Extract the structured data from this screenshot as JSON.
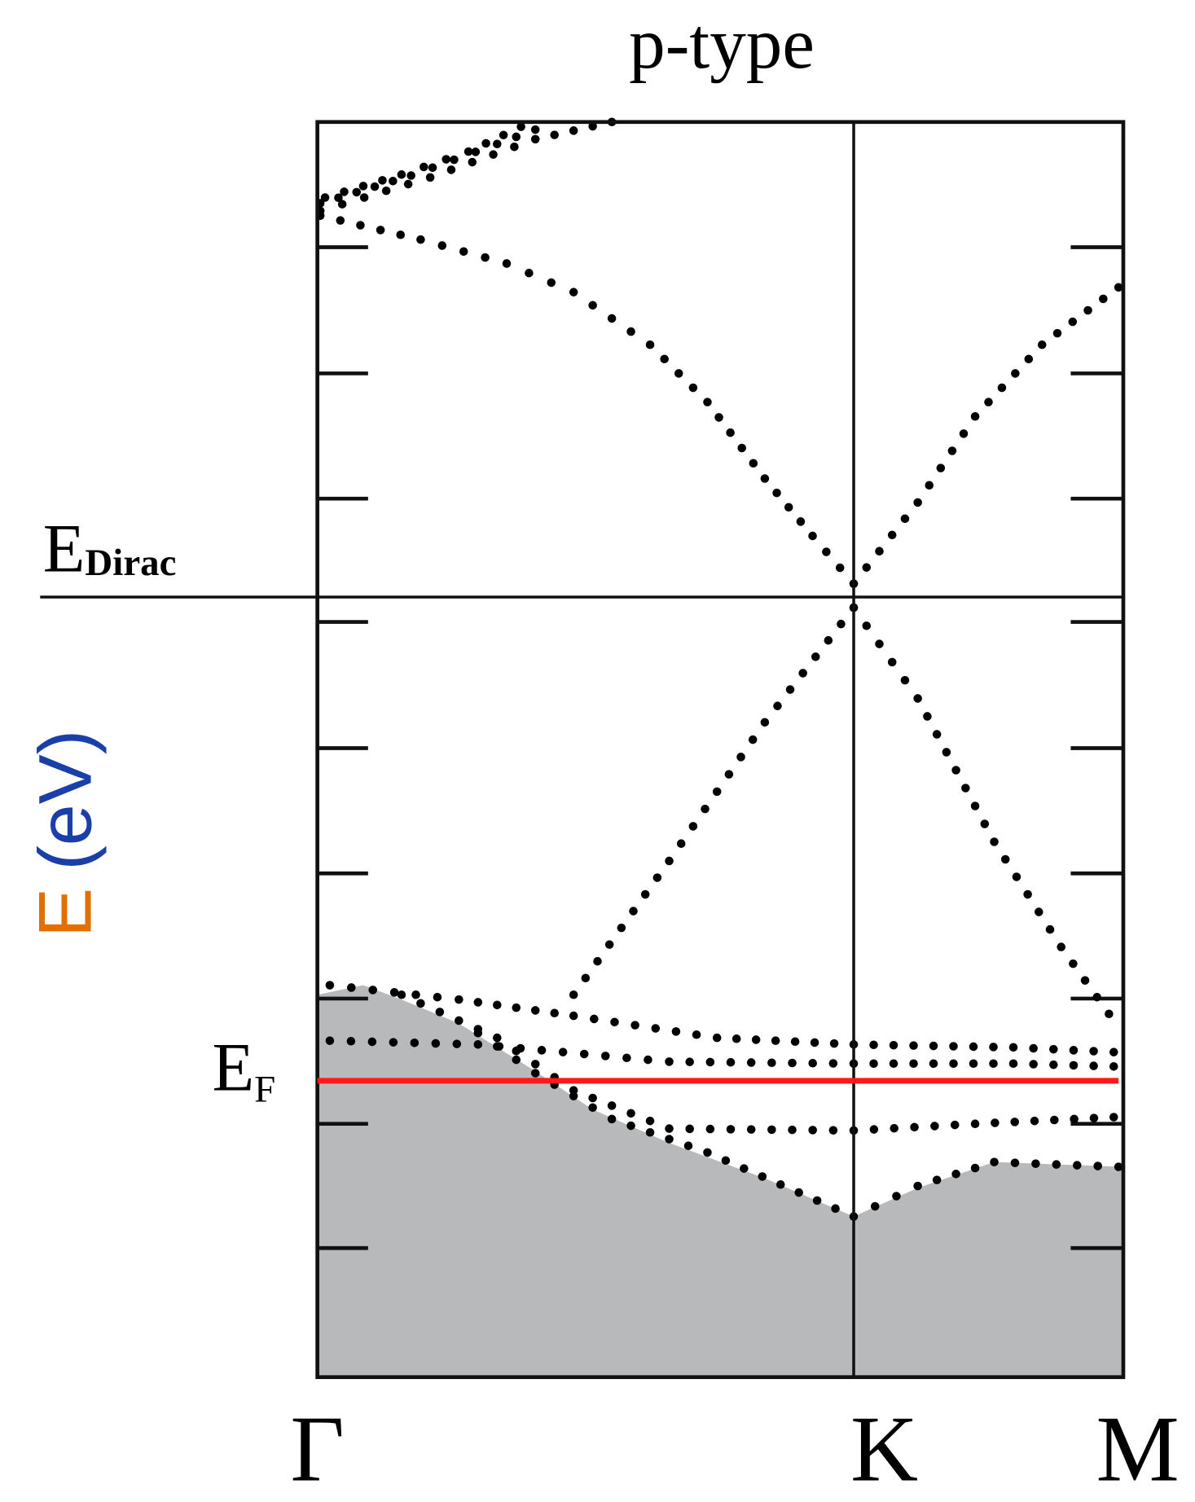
{
  "title": "p-type",
  "y_axis_label": {
    "symbol": "E",
    "unit": "(eV)"
  },
  "levels": {
    "dirac": {
      "symbol": "E",
      "subscript": "Dirac"
    },
    "fermi": {
      "symbol": "E",
      "subscript": "F"
    }
  },
  "k_points": [
    "Γ",
    "K",
    "M"
  ]
}
